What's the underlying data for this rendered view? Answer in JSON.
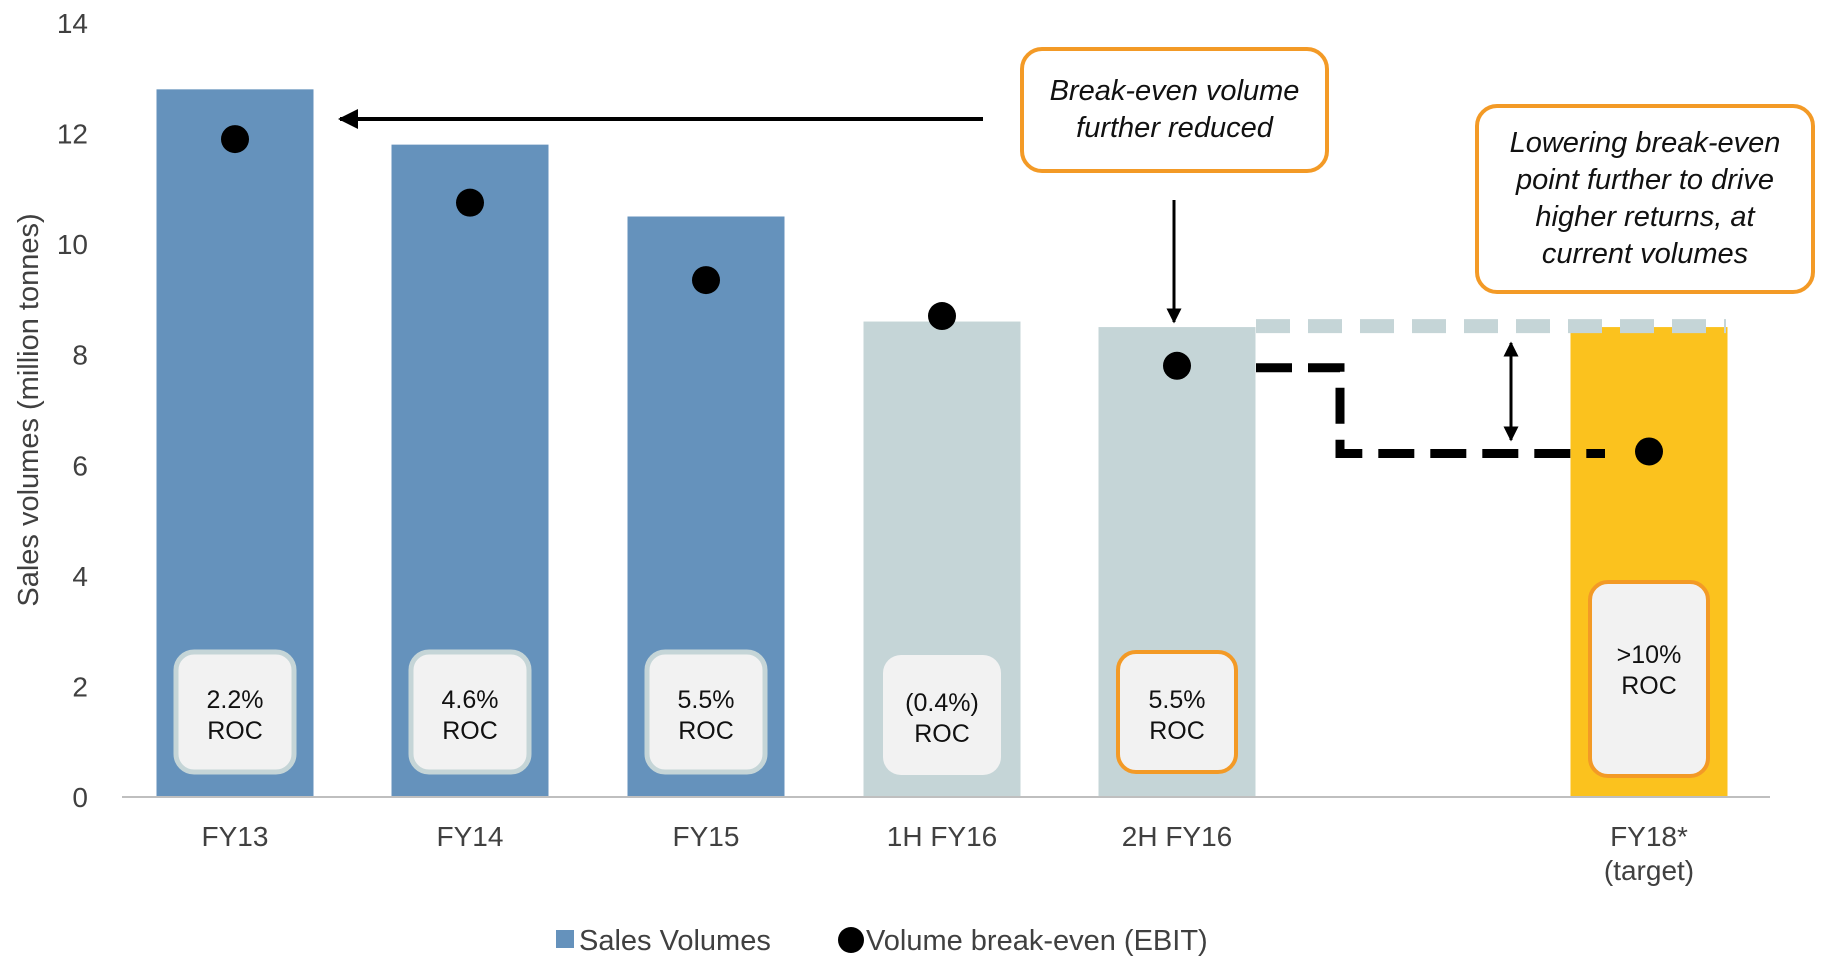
{
  "chart_data": {
    "type": "bar",
    "title": "",
    "xlabel": "",
    "ylabel": "Sales volumes (million tonnes)",
    "ylim": [
      0,
      14
    ],
    "yticks": [
      "0",
      "2",
      "4",
      "6",
      "8",
      "10",
      "12",
      "14"
    ],
    "categories": [
      "FY13",
      "FY14",
      "FY15",
      "1H FY16",
      "2H FY16",
      "",
      "FY18*\n(target)"
    ],
    "series": [
      {
        "name": "Sales Volumes",
        "kind": "bar",
        "values": [
          12.8,
          11.8,
          10.5,
          8.6,
          8.5,
          null,
          8.5
        ]
      },
      {
        "name": "Volume break-even (EBIT)",
        "kind": "scatter",
        "values": [
          11.9,
          10.75,
          9.35,
          8.7,
          7.8,
          null,
          6.25
        ]
      }
    ],
    "bar_colors": [
      "#6592bc",
      "#6592bc",
      "#6592bc",
      "#c5d5d7",
      "#c5d5d7",
      null,
      "#fbc21e"
    ],
    "roc_labels": [
      "2.2%\nROC",
      "4.6%\nROC",
      "5.5%\nROC",
      "(0.4%)\nROC",
      "5.5%\nROC",
      "",
      ">10%\nROC"
    ],
    "roc_highlight": [
      false,
      false,
      false,
      false,
      true,
      false,
      true
    ],
    "legend": {
      "placement": "bottom",
      "items": [
        {
          "label": "Sales Volumes",
          "marker": "square",
          "color": "#6592bc"
        },
        {
          "label": "Volume break-even (EBIT)",
          "marker": "circle",
          "color": "#000000"
        }
      ]
    },
    "annotations": [
      {
        "id": "callout-1",
        "text": "Break-even volume\nfurther reduced"
      },
      {
        "id": "callout-2",
        "text": "Lowering break-even\npoint further to drive\nhigher returns, at\ncurrent volumes"
      }
    ],
    "grid": false
  },
  "colors": {
    "accent_orange": "#f39a26",
    "roc_box_fill": "#f2f2f2",
    "roc_box_border": "#c5d5d7",
    "axis": "#bfbfbf",
    "text": "#404040",
    "target_line": "#c5d5d7"
  }
}
